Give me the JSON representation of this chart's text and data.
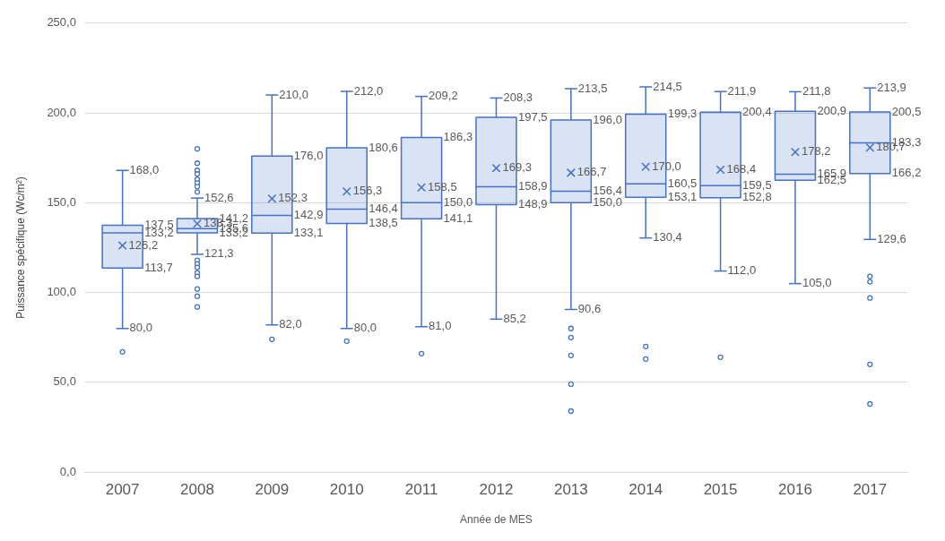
{
  "chart_data": {
    "type": "box",
    "xlabel": "Année de MES",
    "ylabel": "Puissance spécifique (Wc/m²)",
    "categories": [
      "2007",
      "2008",
      "2009",
      "2010",
      "2011",
      "2012",
      "2013",
      "2014",
      "2015",
      "2016",
      "2017"
    ],
    "ylim": [
      0,
      250
    ],
    "yticks": [
      {
        "value": 0,
        "label": "0,0"
      },
      {
        "value": 50,
        "label": "50,0"
      },
      {
        "value": 100,
        "label": "100,0"
      },
      {
        "value": 150,
        "label": "150,0"
      },
      {
        "value": 200,
        "label": "200,0"
      },
      {
        "value": 250,
        "label": "250,0"
      }
    ],
    "grid": "y",
    "series": [
      {
        "color": "#4472c4",
        "boxes": [
          {
            "low": 80.0,
            "q1": 113.7,
            "median": 133.2,
            "q3": 137.5,
            "high": 168.0,
            "mean": 126.2,
            "outliers": [
              67
            ]
          },
          {
            "low": 121.3,
            "q1": 133.2,
            "median": 135.6,
            "q3": 141.2,
            "high": 152.6,
            "mean": 138.3,
            "outliers": [
              180,
              172,
              168,
              166,
              163,
              161,
              159,
              156,
              118,
              116,
              114,
              111,
              109,
              102,
              98,
              92
            ]
          },
          {
            "low": 82.0,
            "q1": 133.1,
            "median": 142.9,
            "q3": 176.0,
            "high": 210.0,
            "mean": 152.3,
            "outliers": [
              74
            ]
          },
          {
            "low": 80.0,
            "q1": 138.5,
            "median": 146.4,
            "q3": 180.6,
            "high": 212.0,
            "mean": 156.3,
            "outliers": [
              73
            ]
          },
          {
            "low": 81.0,
            "q1": 141.1,
            "median": 150.0,
            "q3": 186.3,
            "high": 209.2,
            "mean": 158.5,
            "outliers": [
              66
            ]
          },
          {
            "low": 85.2,
            "q1": 148.9,
            "median": 158.9,
            "q3": 197.5,
            "high": 208.3,
            "mean": 169.3
          },
          {
            "low": 90.6,
            "q1": 150.0,
            "median": 156.4,
            "q3": 196.0,
            "high": 213.5,
            "mean": 166.7,
            "outliers": [
              80,
              75,
              65,
              49,
              34
            ]
          },
          {
            "low": 130.4,
            "q1": 153.1,
            "median": 160.5,
            "q3": 199.3,
            "high": 214.5,
            "mean": 170.0,
            "outliers": [
              70,
              63
            ]
          },
          {
            "low": 112.0,
            "q1": 152.8,
            "median": 159.5,
            "q3": 200.4,
            "high": 211.9,
            "mean": 168.4,
            "outliers": [
              64
            ]
          },
          {
            "low": 105.0,
            "q1": 162.5,
            "median": 165.9,
            "q3": 200.9,
            "high": 211.8,
            "mean": 178.2
          },
          {
            "low": 129.6,
            "q1": 166.2,
            "median": 183.3,
            "q3": 200.5,
            "high": 213.9,
            "mean": 180.7,
            "outliers": [
              109,
              106,
              97,
              60,
              38
            ]
          }
        ]
      }
    ],
    "annotations": [
      {
        "text": "168,0",
        "x": "2007",
        "y": 168.0
      },
      {
        "text": "137,5",
        "x": "2007",
        "y": 137.5
      },
      {
        "text": "133,2",
        "x": "2007",
        "y": 133.2
      },
      "126,2",
      {
        "text": "113,7",
        "x": "2007",
        "y": 113.7
      },
      {
        "text": "80,0",
        "x": "2007",
        "y": 80.0
      },
      {
        "text": "152,6",
        "x": "2008",
        "y": 152.6
      },
      {
        "text": "141,2",
        "x": "2008",
        "y": 141.2
      },
      "138,3",
      {
        "text": "135,6",
        "x": "2008",
        "y": 135.6
      },
      {
        "text": "133,2",
        "x": "2008",
        "y": 133.2
      },
      {
        "text": "121,3",
        "x": "2008",
        "y": 121.3
      },
      {
        "text": "210,0",
        "x": "2009",
        "y": 210.0
      },
      {
        "text": "176,0",
        "x": "2009",
        "y": 176.0
      },
      "152,3",
      {
        "text": "142,9",
        "x": "2009",
        "y": 142.9
      },
      {
        "text": "133,1",
        "x": "2009",
        "y": 133.1
      },
      {
        "text": "82,0",
        "x": "2009",
        "y": 82.0
      },
      {
        "text": "212,0",
        "x": "2010",
        "y": 212.0
      },
      {
        "text": "180,6",
        "x": "2010",
        "y": 180.6
      },
      "156,3",
      {
        "text": "146,4",
        "x": "2010",
        "y": 146.4
      },
      {
        "text": "138,5",
        "x": "2010",
        "y": 138.5
      },
      {
        "text": "80,0",
        "x": "2010",
        "y": 80.0
      },
      {
        "text": "209,2",
        "x": "2011",
        "y": 209.2
      },
      {
        "text": "186,3",
        "x": "2011",
        "y": 186.3
      },
      "158,5",
      {
        "text": "150,0",
        "x": "2011",
        "y": 150.0
      },
      {
        "text": "141,1",
        "x": "2011",
        "y": 141.1
      },
      {
        "text": "81,0",
        "x": "2011",
        "y": 81.0
      },
      {
        "text": "208,3",
        "x": "2012",
        "y": 208.3
      },
      {
        "text": "197,5",
        "x": "2012",
        "y": 197.5
      },
      "169,3",
      {
        "text": "158,9",
        "x": "2012",
        "y": 158.9
      },
      {
        "text": "148,9",
        "x": "2012",
        "y": 148.9
      },
      {
        "text": "85,2",
        "x": "2012",
        "y": 85.2
      },
      {
        "text": "213,5",
        "x": "2013",
        "y": 213.5
      },
      {
        "text": "196,0",
        "x": "2013",
        "y": 196.0
      },
      "166,7",
      {
        "text": "156,4",
        "x": "2013",
        "y": 156.4
      },
      {
        "text": "150,0",
        "x": "2013",
        "y": 150.0
      },
      {
        "text": "90,6",
        "x": "2013",
        "y": 90.6
      },
      {
        "text": "214,5",
        "x": "2014",
        "y": 214.5
      },
      {
        "text": "199,3",
        "x": "2014",
        "y": 199.3
      },
      "170,0",
      {
        "text": "160,5",
        "x": "2014",
        "y": 160.5
      },
      {
        "text": "153,1",
        "x": "2014",
        "y": 153.1
      },
      {
        "text": "130,4",
        "x": "2014",
        "y": 130.4
      },
      {
        "text": "211,9",
        "x": "2015",
        "y": 211.9
      },
      {
        "text": "200,4",
        "x": "2015",
        "y": 200.4
      },
      "168,4",
      {
        "text": "159,5",
        "x": "2015",
        "y": 159.5
      },
      {
        "text": "152,8",
        "x": "2015",
        "y": 152.8
      },
      {
        "text": "112,0",
        "x": "2015",
        "y": 112.0
      },
      {
        "text": "211,8",
        "x": "2016",
        "y": 211.8
      },
      {
        "text": "200,9",
        "x": "2016",
        "y": 200.9
      },
      "178,2",
      {
        "text": "165,9",
        "x": "2016",
        "y": 165.9
      },
      {
        "text": "162,5",
        "x": "2016",
        "y": 162.5
      },
      {
        "text": "105,0",
        "x": "2016",
        "y": 105.0
      },
      {
        "text": "213,9",
        "x": "2017",
        "y": 213.9
      },
      {
        "text": "200,5",
        "x": "2017",
        "y": 200.5
      },
      {
        "text": "183,3",
        "x": "2017",
        "y": 183.3
      },
      "180,7",
      {
        "text": "166,2",
        "x": "2017",
        "y": 166.2
      },
      {
        "text": "129,6",
        "x": "2017",
        "y": 129.6
      }
    ]
  }
}
